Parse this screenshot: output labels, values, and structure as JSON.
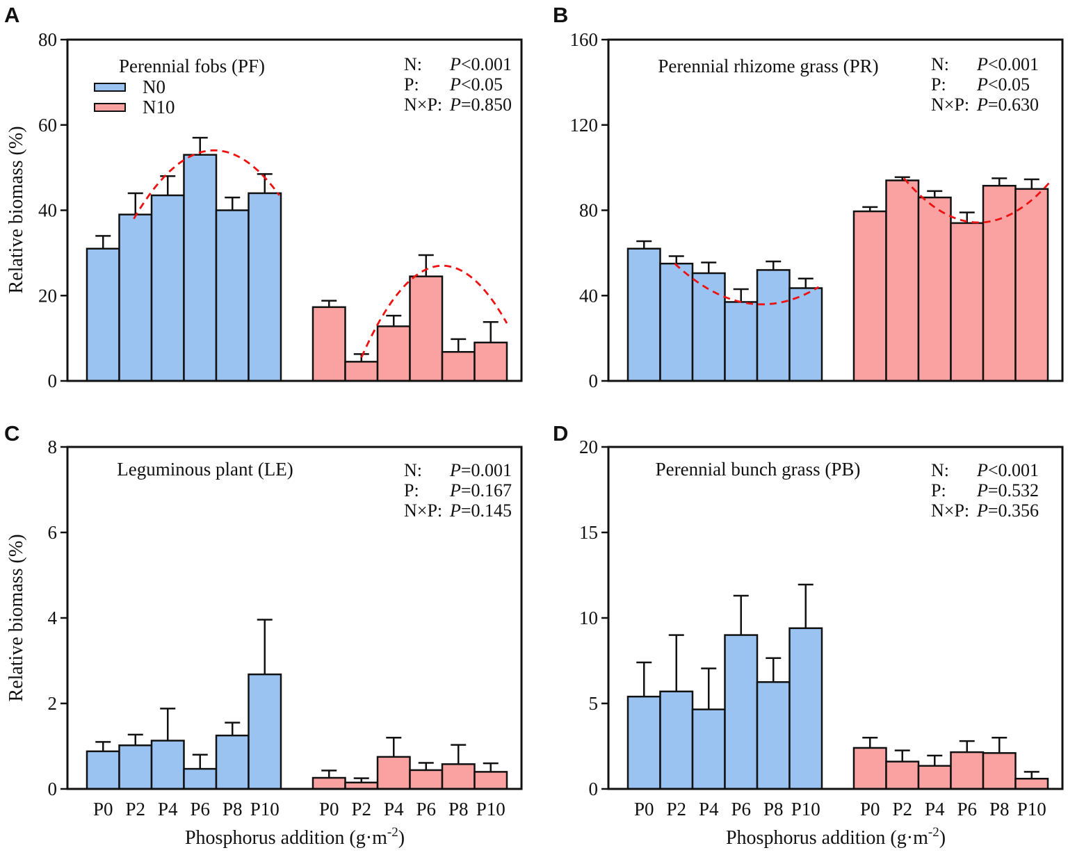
{
  "figure": {
    "ylabel": "Relative biomass (%)",
    "xlabel": {
      "pre": "Phosphorus addition (g·m",
      "sup": "-2",
      "post": ")"
    },
    "legend": {
      "items": [
        {
          "label": "N0"
        },
        {
          "label": "N10"
        }
      ]
    },
    "colors": {
      "n0_fill": "#9BC3F2",
      "n10_fill": "#F9A2A1",
      "bar_stroke": "#111111",
      "trend": "#EE1111",
      "axis": "#111111"
    }
  },
  "categories": [
    "P0",
    "P2",
    "P4",
    "P6",
    "P8",
    "P10"
  ],
  "chart_data": [
    {
      "panel": "A",
      "type": "bar",
      "title": "Perennial fobs (PF)",
      "ylim": [
        0,
        80
      ],
      "yticks": [
        0,
        20,
        40,
        60,
        80
      ],
      "categories": [
        "P0",
        "P2",
        "P4",
        "P6",
        "P8",
        "P10"
      ],
      "series": [
        {
          "name": "N0",
          "values": [
            31,
            39,
            43.5,
            53,
            40,
            44
          ],
          "errors": [
            3,
            5,
            4.5,
            4,
            3,
            4.5
          ]
        },
        {
          "name": "N10",
          "values": [
            17.3,
            4.5,
            12.8,
            24.5,
            6.8,
            9
          ],
          "errors": [
            1.5,
            1.8,
            2.5,
            5,
            3,
            4.8
          ]
        }
      ],
      "stats": [
        {
          "label": "N:",
          "p": "P",
          "value": "<0.001"
        },
        {
          "label": "P:",
          "p": "P",
          "value": "<0.05"
        },
        {
          "label": "N×P:",
          "p": "P",
          "value": "=0.850"
        }
      ],
      "trend": [
        {
          "series": "N0",
          "x": [
            0.95,
            3.3,
            5.45
          ],
          "y": [
            38,
            54,
            43.5
          ]
        },
        {
          "series": "N10",
          "x": [
            1.0,
            3.55,
            5.5
          ],
          "y": [
            5.5,
            27,
            13.5
          ]
        }
      ]
    },
    {
      "panel": "B",
      "type": "bar",
      "title": "Perennial rhizome grass (PR)",
      "ylim": [
        0,
        160
      ],
      "yticks": [
        0,
        40,
        80,
        120,
        160
      ],
      "categories": [
        "P0",
        "P2",
        "P4",
        "P6",
        "P8",
        "P10"
      ],
      "series": [
        {
          "name": "N0",
          "values": [
            62,
            55,
            50.5,
            37,
            52,
            43.5
          ],
          "errors": [
            3.5,
            3.5,
            5,
            6,
            4,
            4.5
          ]
        },
        {
          "name": "N10",
          "values": [
            79.5,
            94,
            86,
            74,
            91.5,
            90
          ],
          "errors": [
            2,
            1.5,
            3,
            5,
            3.5,
            4.5
          ]
        }
      ],
      "stats": [
        {
          "label": "N:",
          "p": "P",
          "value": "<0.001"
        },
        {
          "label": "P:",
          "p": "P",
          "value": "<0.05"
        },
        {
          "label": "N×P:",
          "p": "P",
          "value": "=0.630"
        }
      ],
      "trend": [
        {
          "series": "N0",
          "x": [
            0.95,
            3.45,
            5.4
          ],
          "y": [
            55,
            36,
            44
          ]
        },
        {
          "series": "N10",
          "x": [
            1.05,
            3.6,
            5.55
          ],
          "y": [
            95,
            74.5,
            93
          ]
        }
      ]
    },
    {
      "panel": "C",
      "type": "bar",
      "title": "Leguminous plant (LE)",
      "ylim": [
        0,
        8
      ],
      "yticks": [
        0,
        2,
        4,
        6,
        8
      ],
      "categories": [
        "P0",
        "P2",
        "P4",
        "P6",
        "P8",
        "P10"
      ],
      "series": [
        {
          "name": "N0",
          "values": [
            0.88,
            1.02,
            1.13,
            0.47,
            1.25,
            2.68
          ],
          "errors": [
            0.22,
            0.25,
            0.75,
            0.33,
            0.3,
            1.28
          ]
        },
        {
          "name": "N10",
          "values": [
            0.26,
            0.15,
            0.75,
            0.44,
            0.58,
            0.4
          ],
          "errors": [
            0.17,
            0.1,
            0.45,
            0.17,
            0.45,
            0.2
          ]
        }
      ],
      "stats": [
        {
          "label": "N:",
          "p": "P",
          "value": "=0.001"
        },
        {
          "label": "P:",
          "p": "P",
          "value": "=0.167"
        },
        {
          "label": "N×P:",
          "p": "P",
          "value": "=0.145"
        }
      ],
      "trend": []
    },
    {
      "panel": "D",
      "type": "bar",
      "title": "Perennial bunch grass (PB)",
      "ylim": [
        0,
        20
      ],
      "yticks": [
        0,
        5,
        10,
        15,
        20
      ],
      "categories": [
        "P0",
        "P2",
        "P4",
        "P6",
        "P8",
        "P10"
      ],
      "series": [
        {
          "name": "N0",
          "values": [
            5.4,
            5.7,
            4.65,
            9.0,
            6.25,
            9.4
          ],
          "errors": [
            2.0,
            3.3,
            2.4,
            2.3,
            1.4,
            2.55
          ]
        },
        {
          "name": "N10",
          "values": [
            2.4,
            1.6,
            1.35,
            2.15,
            2.1,
            0.6
          ],
          "errors": [
            0.6,
            0.65,
            0.6,
            0.65,
            0.9,
            0.4
          ]
        }
      ],
      "stats": [
        {
          "label": "N:",
          "p": "P",
          "value": "<0.001"
        },
        {
          "label": "P:",
          "p": "P",
          "value": "=0.532"
        },
        {
          "label": "N×P:",
          "p": "P",
          "value": "=0.356"
        }
      ],
      "trend": []
    }
  ]
}
